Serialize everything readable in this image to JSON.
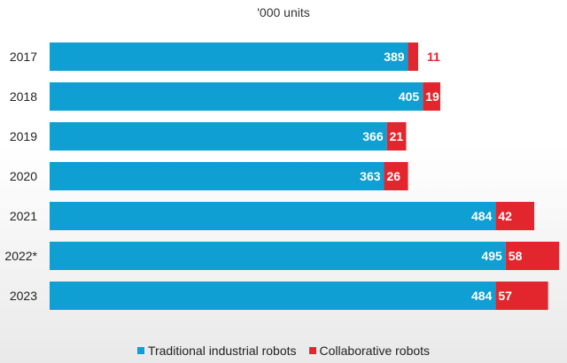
{
  "chart_data": {
    "type": "bar",
    "orientation": "horizontal",
    "stacked": true,
    "unit_label": "'000 units",
    "categories": [
      "2017",
      "2018",
      "2019",
      "2020",
      "2021",
      "2022*",
      "2023"
    ],
    "series": [
      {
        "name": "Traditional industrial robots",
        "color": "#0f9fd2",
        "values": [
          389,
          405,
          366,
          363,
          484,
          495,
          484
        ]
      },
      {
        "name": "Collaborative robots",
        "color": "#e3262d",
        "values": [
          11,
          19,
          21,
          26,
          42,
          58,
          57
        ]
      }
    ],
    "grid": false,
    "legend_position": "bottom"
  }
}
